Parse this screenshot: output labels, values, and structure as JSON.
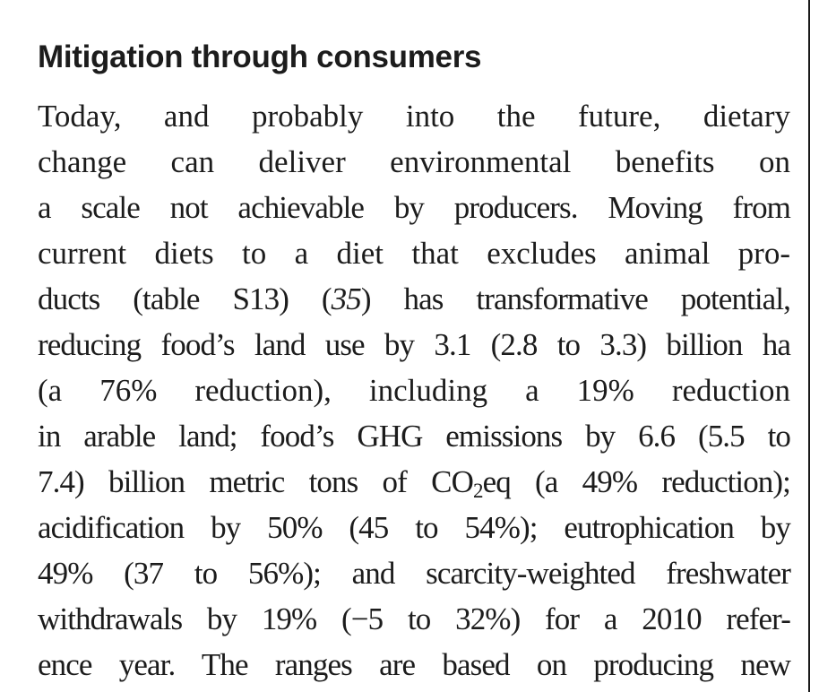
{
  "section": {
    "heading": "Mitigation through consumers"
  },
  "paragraph": {
    "line1": "Today, and probably into the future, dietary",
    "line2": "change can deliver environmental benefits on",
    "line3": "a scale not achievable by producers. Moving from",
    "line4": "current diets to a diet that excludes animal pro-",
    "line5_before_ref": "ducts (table S13) (",
    "line5_ref": "35",
    "line5_after_ref": ") has transformative potential,",
    "line6": "reducing food’s land use by 3.1 (2.8 to 3.3) billion ha",
    "line7": "(a 76% reduction), including a 19% reduction",
    "line8": "in arable land; food’s GHG emissions by 6.6 (5.5 to",
    "line9_before_sub": "7.4) billion metric tons of CO",
    "line9_sub": "2",
    "line9_after_sub": "eq (a 49% reduction);",
    "line10": "acidification by 50% (45 to 54%); eutrophication by",
    "line11": "49% (37 to 56%); and scarcity-weighted freshwater",
    "line12": "withdrawals by 19% (−5 to 32%) for a 2010 refer-",
    "line13": "ence year. The ranges are based on producing new"
  }
}
